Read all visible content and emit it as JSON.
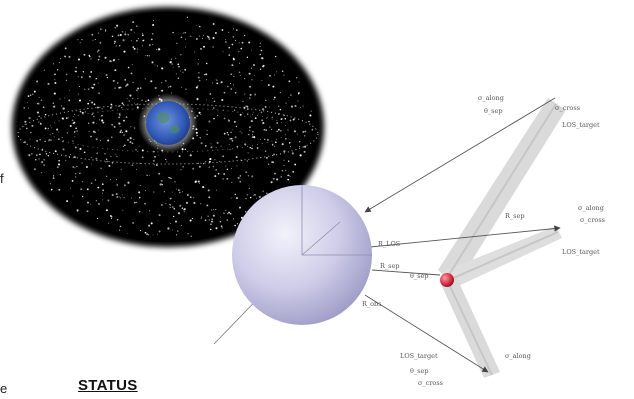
{
  "edge_text": {
    "fragment_1": "f",
    "fragment_2": "e"
  },
  "heading": "STATUS",
  "colors": {
    "space_background": "#000000",
    "earth": "#3a5fb8",
    "sphere": "#c9c8e6",
    "target": "#d8344a",
    "beam": "#cfcfcf",
    "arrow": "#444444"
  },
  "images": {
    "debris_field": "space debris cloud around earth",
    "central_sphere": "observer sphere with axes",
    "target_point": "red target marker"
  },
  "labels": {
    "top_cluster": [
      "σ_along",
      "σ_cross",
      "θ_sep",
      "LOS_target"
    ],
    "right_cluster": [
      "R_sep",
      "σ_along",
      "σ_cross",
      "LOS_target"
    ],
    "bottom_cluster": [
      "LOS_target",
      "σ_along",
      "θ_sep",
      "σ_cross"
    ],
    "sphere_side": [
      "R_LOS",
      "R_sep",
      "θ_sep",
      "R_obs"
    ]
  }
}
